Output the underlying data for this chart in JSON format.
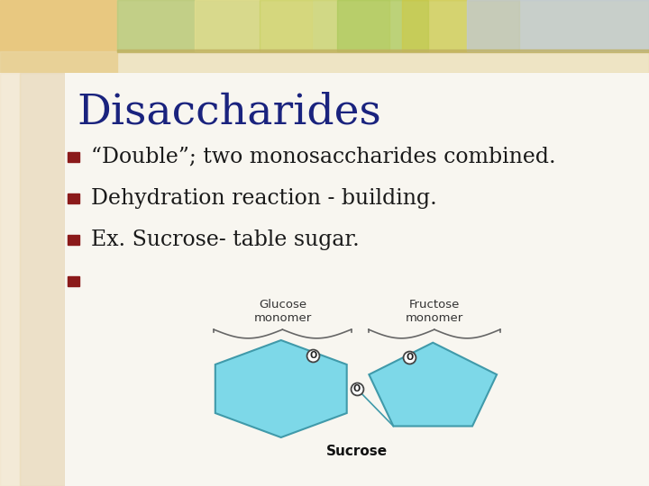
{
  "title": "Disaccharides",
  "title_color": "#1a237e",
  "title_fontsize": 34,
  "bullet_color": "#8b1a1a",
  "bullet_text_color": "#1a1a1a",
  "bullet_fontsize": 17,
  "bullets": [
    "“Double”; two monosaccharides combined.",
    "Dehydration reaction - building.",
    "Ex. Sucrose- table sugar.",
    ""
  ],
  "bg_main": "#f8f6f0",
  "bg_left_strip": "#e8d8b8",
  "header_left_bg": "#e8c880",
  "header_mid_bg": "#c8d8a0",
  "header_right_bg": "#c0c8d8",
  "sugar_color_light": "#7dd8e8",
  "sugar_color_dark": "#50b8cc",
  "sugar_edge": "#409aaa",
  "glucose_label": "Glucose\nmonomer",
  "fructose_label": "Fructose\nmonomer",
  "sucrose_label": "Sucrose",
  "label_color": "#333333",
  "brace_color": "#666666"
}
